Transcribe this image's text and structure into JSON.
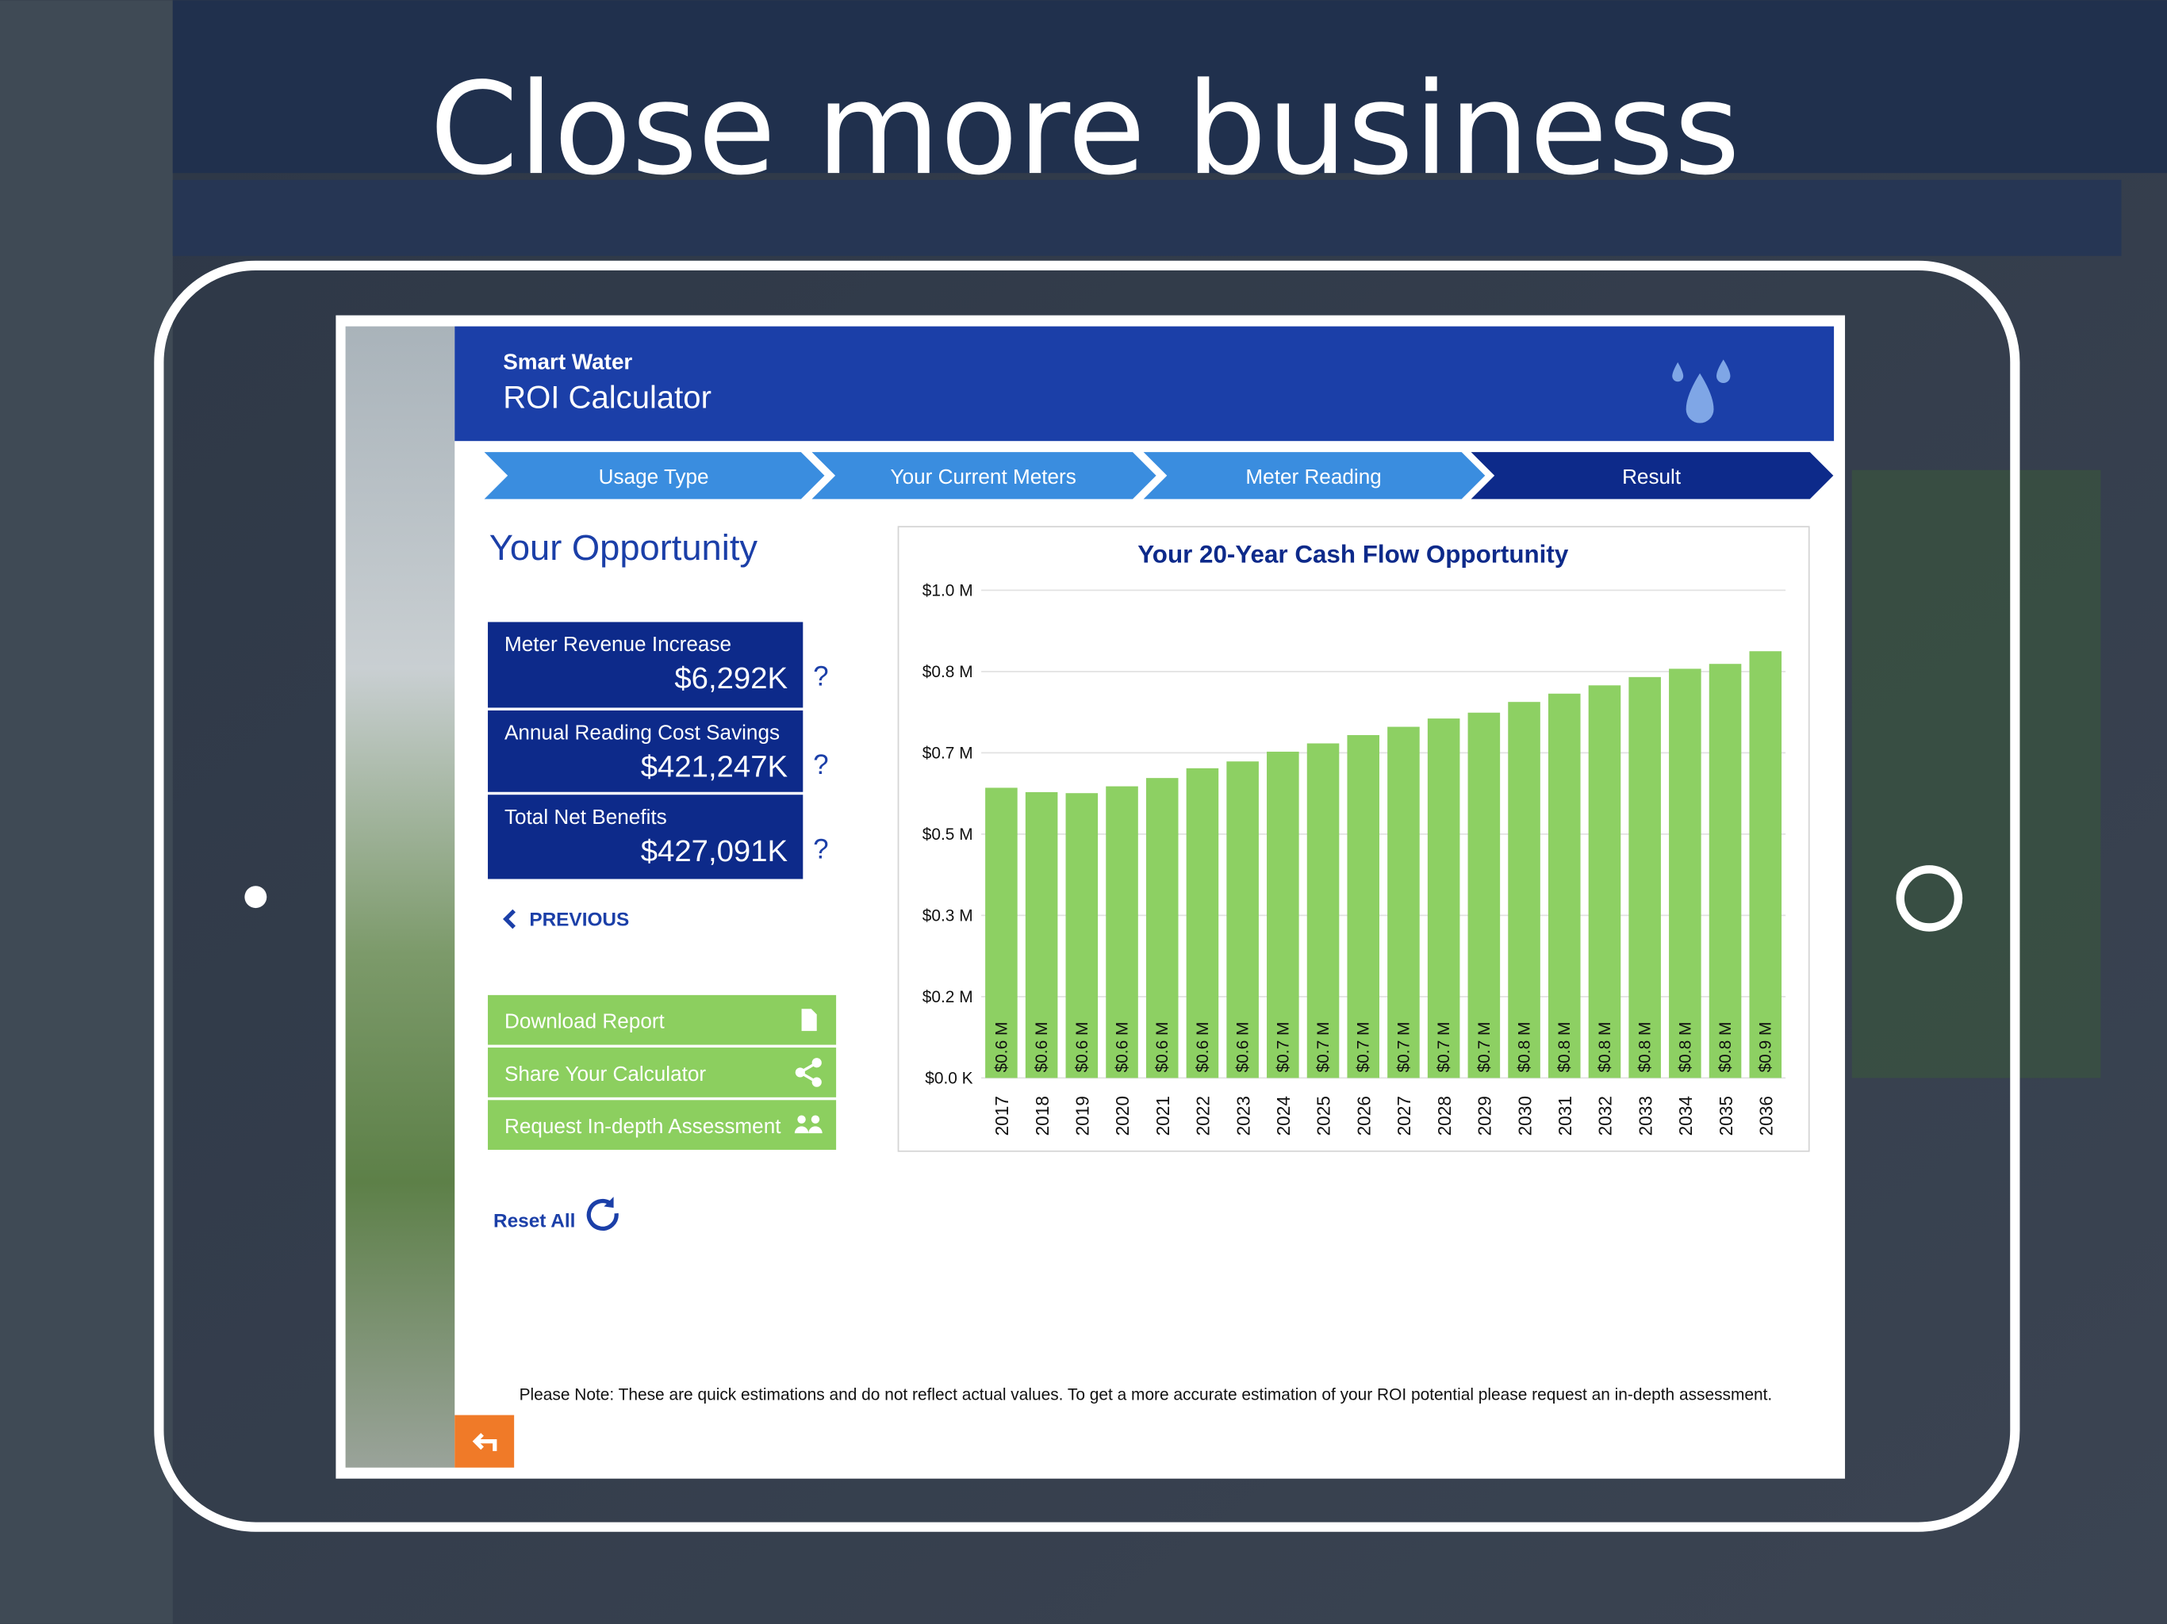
{
  "headline": "Close more business",
  "app": {
    "brand": "Smart Water",
    "title": "ROI Calculator",
    "steps": [
      "Usage Type",
      "Your Current Meters",
      "Meter Reading",
      "Result"
    ],
    "section_title": "Your Opportunity",
    "metrics": [
      {
        "label": "Meter Revenue Increase",
        "value": "$6,292K",
        "help": "?"
      },
      {
        "label": "Annual Reading Cost Savings",
        "value": "$421,247K",
        "help": "?"
      },
      {
        "label": "Total Net Benefits",
        "value": "$427,091K",
        "help": "?"
      }
    ],
    "previous": "PREVIOUS",
    "actions": [
      "Download Report",
      "Share Your Calculator",
      "Request In-depth Assessment"
    ],
    "reset": "Reset All",
    "note": "Please Note: These are quick estimations and do not reflect actual values. To get a more accurate estimation of your ROI potential please request an in-depth assessment."
  },
  "chart_data": {
    "type": "bar",
    "title": "Your 20-Year Cash Flow Opportunity",
    "categories": [
      "2017",
      "2018",
      "2019",
      "2020",
      "2021",
      "2022",
      "2023",
      "2024",
      "2025",
      "2026",
      "2027",
      "2028",
      "2029",
      "2030",
      "2031",
      "2032",
      "2033",
      "2034",
      "2035",
      "2036"
    ],
    "values": [
      0.595,
      0.586,
      0.584,
      0.598,
      0.615,
      0.635,
      0.649,
      0.669,
      0.686,
      0.703,
      0.72,
      0.737,
      0.749,
      0.771,
      0.788,
      0.805,
      0.822,
      0.839,
      0.849,
      0.875
    ],
    "value_labels": [
      "$0.6 M",
      "$0.6 M",
      "$0.6 M",
      "$0.6 M",
      "$0.6 M",
      "$0.6 M",
      "$0.6 M",
      "$0.7 M",
      "$0.7 M",
      "$0.7 M",
      "$0.7 M",
      "$0.7 M",
      "$0.7 M",
      "$0.8 M",
      "$0.8 M",
      "$0.8 M",
      "$0.8 M",
      "$0.8 M",
      "$0.8 M",
      "$0.9 M"
    ],
    "color": "#8dd063",
    "ylim": [
      0,
      1
    ],
    "yticks": [
      {
        "value": 0,
        "label": "$0.0 K"
      },
      {
        "value": 0.1667,
        "label": "$0.2 M"
      },
      {
        "value": 0.3333,
        "label": "$0.3 M"
      },
      {
        "value": 0.5,
        "label": "$0.5 M"
      },
      {
        "value": 0.6667,
        "label": "$0.7 M"
      },
      {
        "value": 0.8333,
        "label": "$0.8 M"
      },
      {
        "value": 1,
        "label": "$1.0 M"
      }
    ],
    "grid": true
  }
}
